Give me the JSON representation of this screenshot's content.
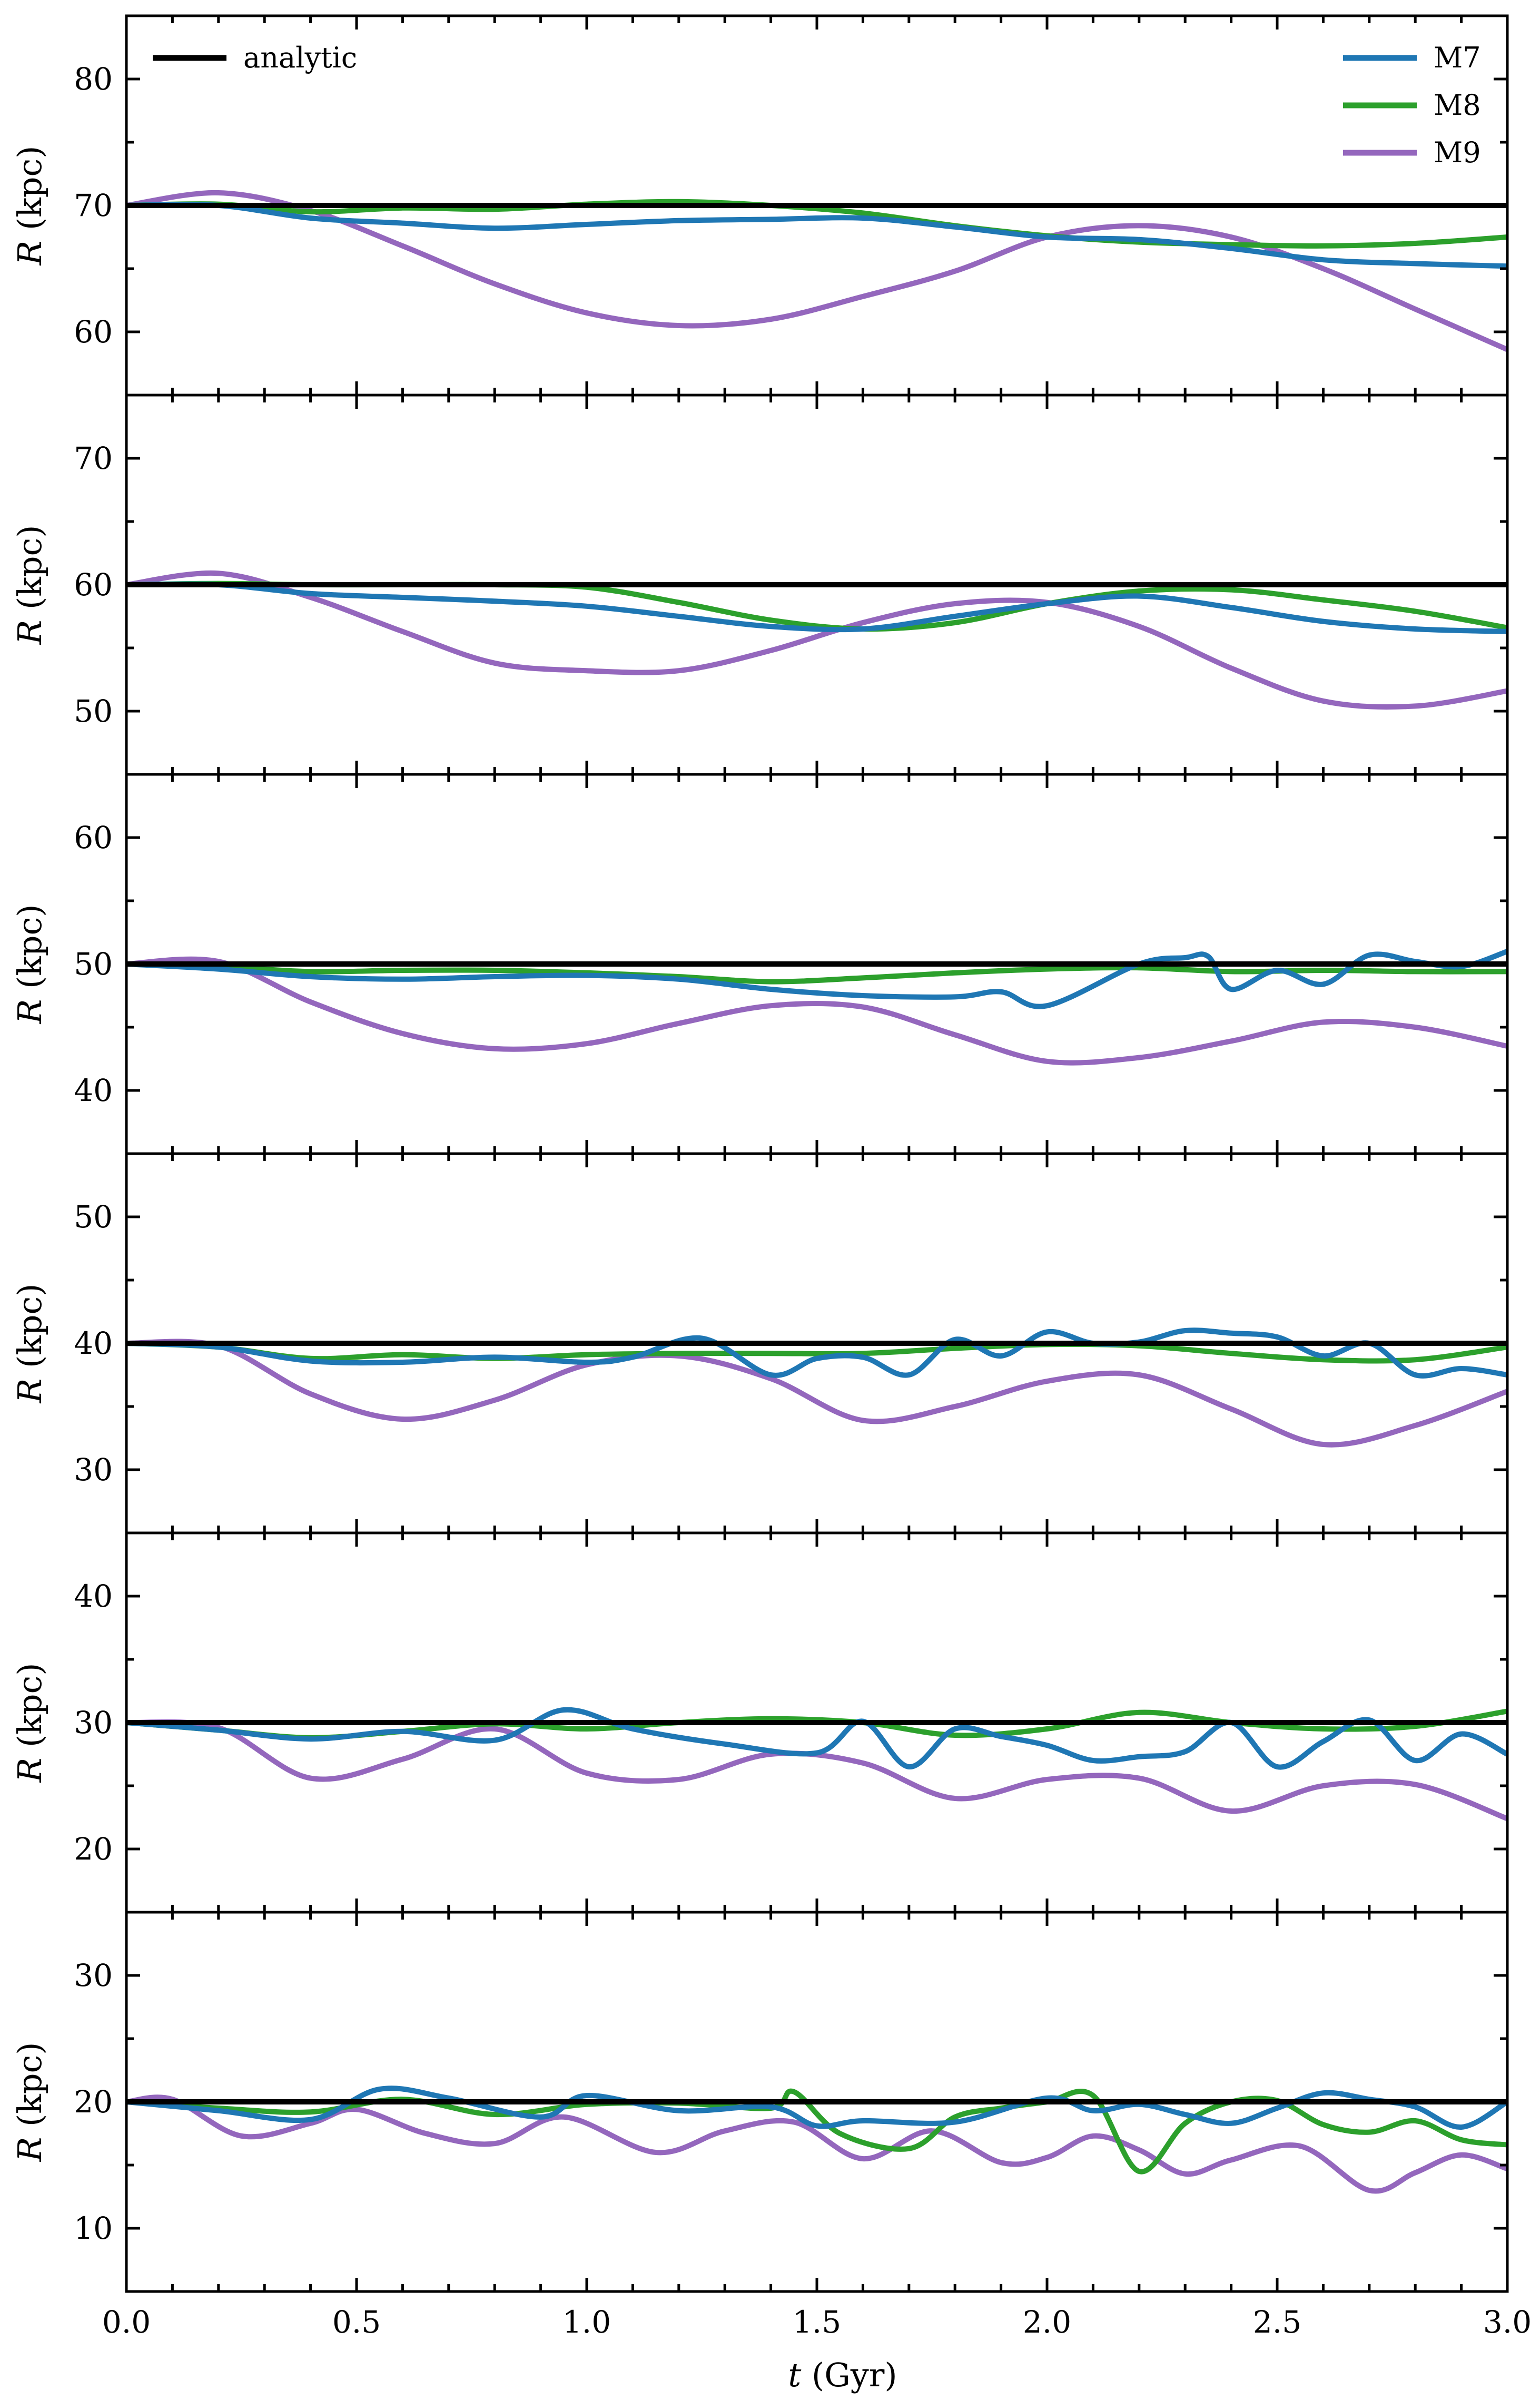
{
  "chart_data": {
    "type": "line",
    "layout": "6 vertically stacked panels sharing the x-axis",
    "xlabel_var": "t",
    "xlabel_unit": " (Gyr)",
    "ylabel_var": "R",
    "ylabel_unit": " (kpc)",
    "xlim": [
      0.0,
      3.0
    ],
    "xticks": [
      0.0,
      0.5,
      1.0,
      1.5,
      2.0,
      2.5,
      3.0
    ],
    "xtick_labels": [
      "0.0",
      "0.5",
      "1.0",
      "1.5",
      "2.0",
      "2.5",
      "3.0"
    ],
    "legend": [
      {
        "label": "analytic",
        "key": "analytic",
        "placement": "top-left",
        "color": "#000000"
      },
      {
        "label": "M7",
        "key": "M7",
        "placement": "top-right",
        "color": "#1f77b4"
      },
      {
        "label": "M8",
        "key": "M8",
        "placement": "top-right",
        "color": "#2ca02c"
      },
      {
        "label": "M9",
        "key": "M9",
        "placement": "top-right",
        "color": "#9467bd"
      }
    ],
    "panels": [
      {
        "ylim": [
          55,
          85
        ],
        "yticks": [
          60,
          70,
          80
        ],
        "ytick_labels": [
          "60",
          "70",
          "80"
        ],
        "series": [
          {
            "name": "analytic",
            "x": [
              0,
              3.0
            ],
            "y": [
              70,
              70
            ]
          },
          {
            "name": "M7",
            "x": [
              0,
              0.2,
              0.4,
              0.6,
              0.8,
              1.0,
              1.2,
              1.4,
              1.6,
              1.8,
              2.0,
              2.2,
              2.4,
              2.6,
              2.8,
              3.0
            ],
            "y": [
              70,
              70,
              69,
              68.6,
              68.2,
              68.5,
              68.8,
              68.9,
              69,
              68.3,
              67.5,
              67.3,
              66.6,
              65.7,
              65.4,
              65.2
            ]
          },
          {
            "name": "M8",
            "x": [
              0,
              0.2,
              0.4,
              0.6,
              0.8,
              1.0,
              1.2,
              1.4,
              1.6,
              1.8,
              2.0,
              2.2,
              2.4,
              2.6,
              2.8,
              3.0
            ],
            "y": [
              70,
              70.1,
              69.5,
              69.8,
              69.7,
              70.1,
              70.3,
              70,
              69.4,
              68.4,
              67.6,
              67.1,
              66.9,
              66.8,
              67.0,
              67.5
            ]
          },
          {
            "name": "M9",
            "x": [
              0,
              0.2,
              0.4,
              0.6,
              0.8,
              1.0,
              1.2,
              1.4,
              1.6,
              1.8,
              2.0,
              2.2,
              2.4,
              2.6,
              2.8,
              3.0
            ],
            "y": [
              70,
              71,
              69.6,
              66.8,
              63.8,
              61.5,
              60.5,
              61,
              62.8,
              64.8,
              67.5,
              68.4,
              67.5,
              65,
              61.8,
              58.6
            ]
          }
        ]
      },
      {
        "ylim": [
          45,
          75
        ],
        "yticks": [
          50,
          60,
          70
        ],
        "ytick_labels": [
          "50",
          "60",
          "70"
        ],
        "series": [
          {
            "name": "analytic",
            "x": [
              0,
              3.0
            ],
            "y": [
              60,
              60
            ]
          },
          {
            "name": "M7",
            "x": [
              0,
              0.2,
              0.4,
              0.6,
              0.8,
              1.0,
              1.2,
              1.4,
              1.6,
              1.8,
              2.0,
              2.2,
              2.4,
              2.6,
              2.8,
              3.0
            ],
            "y": [
              60,
              60,
              59.3,
              59,
              58.7,
              58.3,
              57.5,
              56.7,
              56.5,
              57.5,
              58.5,
              59.1,
              58.2,
              57.1,
              56.5,
              56.3
            ]
          },
          {
            "name": "M8",
            "x": [
              0,
              0.2,
              0.4,
              0.6,
              0.8,
              1.0,
              1.2,
              1.4,
              1.6,
              1.8,
              2.0,
              2.2,
              2.4,
              2.6,
              2.8,
              3.0
            ],
            "y": [
              60,
              60.1,
              60,
              60,
              60,
              59.8,
              58.6,
              57.2,
              56.5,
              57,
              58.5,
              59.5,
              59.6,
              58.8,
              57.9,
              56.6
            ]
          },
          {
            "name": "M9",
            "x": [
              0,
              0.2,
              0.4,
              0.6,
              0.8,
              1.0,
              1.2,
              1.4,
              1.6,
              1.8,
              2.0,
              2.2,
              2.4,
              2.6,
              2.8,
              3.0
            ],
            "y": [
              60,
              60.9,
              59,
              56.3,
              53.8,
              53.2,
              53.2,
              54.8,
              57,
              58.5,
              58.6,
              56.7,
              53.4,
              50.8,
              50.4,
              51.6
            ]
          }
        ]
      },
      {
        "ylim": [
          35,
          65
        ],
        "yticks": [
          40,
          50,
          60
        ],
        "ytick_labels": [
          "40",
          "50",
          "60"
        ],
        "series": [
          {
            "name": "analytic",
            "x": [
              0,
              3.0
            ],
            "y": [
              50,
              50
            ]
          },
          {
            "name": "M7",
            "x": [
              0,
              0.2,
              0.4,
              0.6,
              0.8,
              1.0,
              1.2,
              1.4,
              1.6,
              1.8,
              1.9,
              2.0,
              2.2,
              2.3,
              2.35,
              2.4,
              2.5,
              2.6,
              2.7,
              2.8,
              2.9,
              3.0
            ],
            "y": [
              50,
              49.6,
              49,
              48.8,
              49,
              49.1,
              48.8,
              48,
              47.5,
              47.4,
              47.8,
              46.7,
              50,
              50.5,
              50.6,
              48,
              49.5,
              48.4,
              50.7,
              50.2,
              49.8,
              51
            ]
          },
          {
            "name": "M8",
            "x": [
              0,
              0.2,
              0.4,
              0.6,
              0.8,
              1.0,
              1.2,
              1.4,
              1.6,
              1.8,
              2.0,
              2.2,
              2.4,
              2.6,
              2.8,
              3.0
            ],
            "y": [
              50,
              49.8,
              49.4,
              49.5,
              49.5,
              49.3,
              49,
              48.6,
              48.9,
              49.3,
              49.6,
              49.7,
              49.4,
              49.5,
              49.4,
              49.4
            ]
          },
          {
            "name": "M9",
            "x": [
              0,
              0.2,
              0.4,
              0.6,
              0.8,
              1.0,
              1.2,
              1.4,
              1.6,
              1.8,
              2.0,
              2.2,
              2.4,
              2.6,
              2.8,
              3.0
            ],
            "y": [
              50,
              50.2,
              47,
              44.5,
              43.3,
              43.7,
              45.3,
              46.7,
              46.6,
              44.4,
              42.3,
              42.6,
              43.9,
              45.4,
              45,
              43.5
            ]
          }
        ]
      },
      {
        "ylim": [
          25,
          55
        ],
        "yticks": [
          30,
          40,
          50
        ],
        "ytick_labels": [
          "30",
          "40",
          "50"
        ],
        "series": [
          {
            "name": "analytic",
            "x": [
              0,
              3.0
            ],
            "y": [
              40,
              40
            ]
          },
          {
            "name": "M7",
            "x": [
              0,
              0.2,
              0.4,
              0.6,
              0.8,
              1.0,
              1.1,
              1.25,
              1.4,
              1.5,
              1.6,
              1.7,
              1.8,
              1.9,
              2.0,
              2.1,
              2.2,
              2.3,
              2.4,
              2.5,
              2.6,
              2.7,
              2.8,
              2.9,
              3.0
            ],
            "y": [
              40,
              39.7,
              38.6,
              38.5,
              38.9,
              38.5,
              38.9,
              40.4,
              37.5,
              38.8,
              38.9,
              37.5,
              40.3,
              39,
              40.9,
              40,
              40.1,
              41,
              40.8,
              40.5,
              39,
              40,
              37.5,
              38,
              37.5
            ]
          },
          {
            "name": "M8",
            "x": [
              0,
              0.2,
              0.4,
              0.6,
              0.8,
              1.0,
              1.2,
              1.4,
              1.6,
              1.8,
              2.0,
              2.2,
              2.4,
              2.6,
              2.8,
              3.0
            ],
            "y": [
              40,
              39.7,
              38.8,
              39.1,
              38.8,
              39.1,
              39.2,
              39.2,
              39.2,
              39.6,
              39.9,
              39.8,
              39.2,
              38.7,
              38.7,
              39.7
            ]
          },
          {
            "name": "M9",
            "x": [
              0,
              0.2,
              0.4,
              0.6,
              0.8,
              1.0,
              1.2,
              1.4,
              1.6,
              1.8,
              2.0,
              2.2,
              2.4,
              2.6,
              2.8,
              3.0
            ],
            "y": [
              40,
              39.8,
              36,
              34,
              35.5,
              38.3,
              39,
              37.2,
              33.9,
              35,
              37,
              37.5,
              34.8,
              32,
              33.5,
              36.2
            ]
          }
        ]
      },
      {
        "ylim": [
          15,
          45
        ],
        "yticks": [
          20,
          30,
          40
        ],
        "ytick_labels": [
          "20",
          "30",
          "40"
        ],
        "series": [
          {
            "name": "analytic",
            "x": [
              0,
              3.0
            ],
            "y": [
              30,
              30
            ]
          },
          {
            "name": "M7",
            "x": [
              0,
              0.2,
              0.4,
              0.6,
              0.8,
              0.95,
              1.1,
              1.3,
              1.5,
              1.6,
              1.7,
              1.8,
              1.9,
              2.0,
              2.1,
              2.2,
              2.3,
              2.4,
              2.5,
              2.6,
              2.7,
              2.8,
              2.9,
              3.0
            ],
            "y": [
              30,
              29.4,
              28.7,
              29.3,
              28.6,
              31,
              29.5,
              28.3,
              27.6,
              30.1,
              26.5,
              29.5,
              28.9,
              28.2,
              27,
              27.3,
              27.7,
              30,
              26.5,
              28.5,
              30.2,
              27,
              29.1,
              27.5
            ]
          },
          {
            "name": "M8",
            "x": [
              0,
              0.2,
              0.4,
              0.6,
              0.8,
              1.0,
              1.2,
              1.4,
              1.6,
              1.8,
              2.0,
              2.2,
              2.4,
              2.6,
              2.8,
              3.0
            ],
            "y": [
              30,
              29.4,
              28.8,
              29.3,
              29.9,
              29.5,
              30,
              30.3,
              30,
              29,
              29.5,
              30.8,
              30,
              29.5,
              29.7,
              30.9
            ]
          },
          {
            "name": "M9",
            "x": [
              0,
              0.2,
              0.4,
              0.6,
              0.8,
              1.0,
              1.2,
              1.4,
              1.6,
              1.8,
              2.0,
              2.2,
              2.4,
              2.6,
              2.8,
              3.0
            ],
            "y": [
              30,
              29.6,
              25.6,
              27.1,
              29.5,
              26,
              25.5,
              27.5,
              26.8,
              24,
              25.5,
              25.6,
              23,
              25,
              25.1,
              22.4
            ]
          }
        ]
      },
      {
        "ylim": [
          5,
          35
        ],
        "yticks": [
          10,
          20,
          30
        ],
        "ytick_labels": [
          "10",
          "20",
          "30"
        ],
        "series": [
          {
            "name": "analytic",
            "x": [
              0,
              3.0
            ],
            "y": [
              20,
              20
            ]
          },
          {
            "name": "M7",
            "x": [
              0,
              0.2,
              0.4,
              0.55,
              0.7,
              0.9,
              1.0,
              1.2,
              1.4,
              1.5,
              1.6,
              1.8,
              2.0,
              2.1,
              2.2,
              2.3,
              2.4,
              2.5,
              2.6,
              2.7,
              2.8,
              2.9,
              3.0
            ],
            "y": [
              20,
              19.3,
              18.6,
              21,
              20.3,
              18.8,
              20.5,
              19.3,
              19.6,
              18.1,
              18.5,
              18.4,
              20.3,
              19.3,
              19.8,
              19,
              18.3,
              19.5,
              20.7,
              20.2,
              19.6,
              18,
              20
            ]
          },
          {
            "name": "M8",
            "x": [
              0,
              0.2,
              0.4,
              0.6,
              0.8,
              1.0,
              1.2,
              1.4,
              1.45,
              1.55,
              1.7,
              1.8,
              1.9,
              2.0,
              2.1,
              2.2,
              2.3,
              2.4,
              2.5,
              2.6,
              2.7,
              2.8,
              2.9,
              3.0
            ],
            "y": [
              20,
              19.5,
              19.2,
              20.2,
              19,
              19.8,
              19.9,
              19.5,
              20.8,
              17.5,
              16.3,
              18.8,
              19.5,
              20,
              20.5,
              14.5,
              18.3,
              20,
              20.1,
              18.2,
              17.6,
              18.5,
              17,
              16.6
            ]
          },
          {
            "name": "M9",
            "x": [
              0,
              0.1,
              0.25,
              0.4,
              0.5,
              0.65,
              0.8,
              0.95,
              1.15,
              1.3,
              1.45,
              1.6,
              1.75,
              1.9,
              2.0,
              2.1,
              2.2,
              2.3,
              2.4,
              2.55,
              2.7,
              2.8,
              2.9,
              3.0
            ],
            "y": [
              20,
              20.2,
              17.3,
              18.3,
              19.4,
              17.5,
              16.7,
              18.8,
              16,
              17.7,
              18.4,
              15.5,
              17.7,
              15.2,
              15.6,
              17.3,
              16.2,
              14.3,
              15.4,
              16.5,
              13,
              14.4,
              15.8,
              14.7
            ]
          }
        ]
      }
    ]
  }
}
